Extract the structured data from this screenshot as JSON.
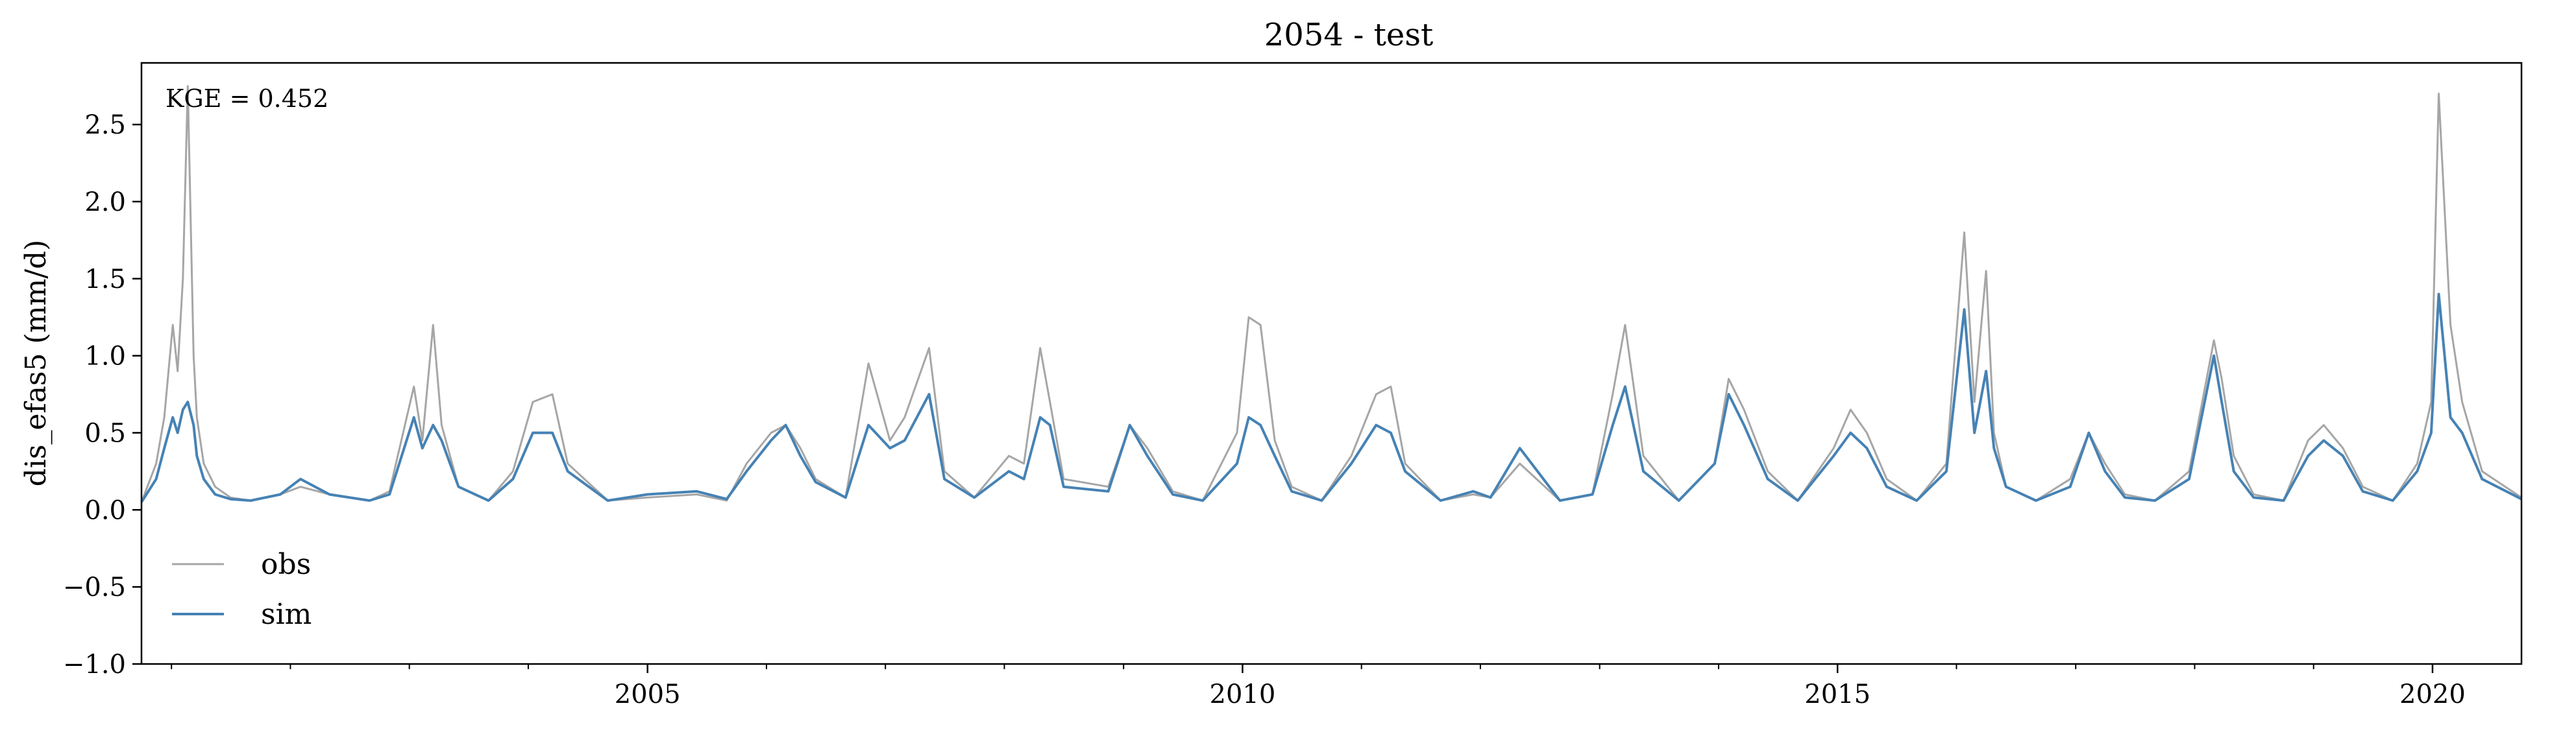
{
  "chart_data": {
    "type": "line",
    "title": "2054 - test",
    "xlabel": "",
    "ylabel": "dis_efas5 (mm/d)",
    "xlim": [
      "2000-10-01",
      "2020-09-30"
    ],
    "ylim": [
      -1.0,
      2.9
    ],
    "yticks": [
      -1.0,
      -0.5,
      0.0,
      0.5,
      1.0,
      1.5,
      2.0,
      2.5
    ],
    "ytick_labels": [
      "−1.0",
      "−0.5",
      "0.0",
      "0.5",
      "1.0",
      "1.5",
      "2.0",
      "2.5"
    ],
    "xticks": [
      "2005-01-01",
      "2010-01-01",
      "2015-01-01",
      "2020-01-01"
    ],
    "xtick_labels": [
      "2005",
      "2010",
      "2015",
      "2020"
    ],
    "grid": false,
    "legend_position": "lower-left",
    "annotation": "KGE = 0.452",
    "colors": {
      "obs": "#a6a6a6",
      "sim": "#4682b4"
    },
    "series": [
      {
        "name": "obs",
        "color": "#a6a6a6",
        "x": [
          "2000-10-01",
          "2000-11-15",
          "2000-12-10",
          "2001-01-05",
          "2001-01-20",
          "2001-02-05",
          "2001-02-20",
          "2001-03-10",
          "2001-03-20",
          "2001-04-10",
          "2001-05-15",
          "2001-07-01",
          "2001-09-01",
          "2001-12-01",
          "2002-02-01",
          "2002-05-01",
          "2002-09-01",
          "2002-11-01",
          "2003-01-15",
          "2003-02-10",
          "2003-03-15",
          "2003-04-10",
          "2003-06-01",
          "2003-09-01",
          "2003-11-15",
          "2004-01-15",
          "2004-03-15",
          "2004-05-01",
          "2004-09-01",
          "2005-01-01",
          "2005-06-01",
          "2005-09-01",
          "2005-11-01",
          "2006-01-15",
          "2006-03-01",
          "2006-04-15",
          "2006-06-01",
          "2006-09-01",
          "2006-11-10",
          "2007-01-15",
          "2007-03-01",
          "2007-05-15",
          "2007-07-01",
          "2007-10-01",
          "2008-01-15",
          "2008-03-01",
          "2008-04-20",
          "2008-05-20",
          "2008-07-01",
          "2008-11-15",
          "2009-01-20",
          "2009-03-15",
          "2009-06-01",
          "2009-09-01",
          "2009-12-15",
          "2010-01-20",
          "2010-02-25",
          "2010-04-10",
          "2010-06-01",
          "2010-09-01",
          "2010-12-01",
          "2011-02-15",
          "2011-04-01",
          "2011-05-15",
          "2011-09-01",
          "2011-12-10",
          "2012-02-01",
          "2012-05-01",
          "2012-09-01",
          "2012-12-10",
          "2013-02-10",
          "2013-03-20",
          "2013-05-15",
          "2013-09-01",
          "2013-12-20",
          "2014-02-01",
          "2014-03-20",
          "2014-06-01",
          "2014-09-01",
          "2014-12-20",
          "2015-02-10",
          "2015-04-01",
          "2015-06-01",
          "2015-09-01",
          "2015-12-01",
          "2016-01-25",
          "2016-02-25",
          "2016-04-01",
          "2016-04-25",
          "2016-06-01",
          "2016-09-01",
          "2016-12-15",
          "2017-02-10",
          "2017-04-01",
          "2017-06-01",
          "2017-09-01",
          "2017-12-15",
          "2018-03-01",
          "2018-03-25",
          "2018-05-01",
          "2018-07-01",
          "2018-10-01",
          "2018-12-15",
          "2019-02-01",
          "2019-04-01",
          "2019-06-01",
          "2019-09-01",
          "2019-11-15",
          "2019-12-28",
          "2020-01-20",
          "2020-02-25",
          "2020-04-01",
          "2020-06-01",
          "2020-09-30"
        ],
        "values": [
          0.05,
          0.3,
          0.6,
          1.2,
          0.9,
          1.5,
          2.75,
          1.0,
          0.6,
          0.3,
          0.15,
          0.08,
          0.06,
          0.1,
          0.15,
          0.1,
          0.06,
          0.12,
          0.8,
          0.45,
          1.2,
          0.55,
          0.15,
          0.06,
          0.25,
          0.7,
          0.75,
          0.3,
          0.06,
          0.08,
          0.1,
          0.06,
          0.3,
          0.5,
          0.55,
          0.4,
          0.2,
          0.08,
          0.95,
          0.45,
          0.6,
          1.05,
          0.25,
          0.08,
          0.35,
          0.3,
          1.05,
          0.7,
          0.2,
          0.15,
          0.55,
          0.4,
          0.12,
          0.06,
          0.5,
          1.25,
          1.2,
          0.45,
          0.15,
          0.06,
          0.35,
          0.75,
          0.8,
          0.3,
          0.06,
          0.1,
          0.08,
          0.3,
          0.06,
          0.1,
          0.75,
          1.2,
          0.35,
          0.06,
          0.3,
          0.85,
          0.65,
          0.25,
          0.06,
          0.4,
          0.65,
          0.5,
          0.2,
          0.06,
          0.3,
          1.8,
          0.7,
          1.55,
          0.5,
          0.15,
          0.06,
          0.2,
          0.5,
          0.3,
          0.1,
          0.06,
          0.25,
          1.1,
          0.85,
          0.35,
          0.1,
          0.06,
          0.45,
          0.55,
          0.4,
          0.15,
          0.06,
          0.3,
          0.7,
          2.7,
          1.2,
          0.7,
          0.25,
          0.08
        ]
      },
      {
        "name": "sim",
        "color": "#4682b4",
        "x": [
          "2000-10-01",
          "2000-11-15",
          "2000-12-10",
          "2001-01-05",
          "2001-01-20",
          "2001-02-05",
          "2001-02-20",
          "2001-03-10",
          "2001-03-20",
          "2001-04-10",
          "2001-05-15",
          "2001-07-01",
          "2001-09-01",
          "2001-12-01",
          "2002-02-01",
          "2002-05-01",
          "2002-09-01",
          "2002-11-01",
          "2003-01-15",
          "2003-02-10",
          "2003-03-15",
          "2003-04-10",
          "2003-06-01",
          "2003-09-01",
          "2003-11-15",
          "2004-01-15",
          "2004-03-15",
          "2004-05-01",
          "2004-09-01",
          "2005-01-01",
          "2005-06-01",
          "2005-09-01",
          "2005-11-01",
          "2006-01-15",
          "2006-03-01",
          "2006-04-15",
          "2006-06-01",
          "2006-09-01",
          "2006-11-10",
          "2007-01-15",
          "2007-03-01",
          "2007-05-15",
          "2007-07-01",
          "2007-10-01",
          "2008-01-15",
          "2008-03-01",
          "2008-04-20",
          "2008-05-20",
          "2008-07-01",
          "2008-11-15",
          "2009-01-20",
          "2009-03-15",
          "2009-06-01",
          "2009-09-01",
          "2009-12-15",
          "2010-01-20",
          "2010-02-25",
          "2010-04-10",
          "2010-06-01",
          "2010-09-01",
          "2010-12-01",
          "2011-02-15",
          "2011-04-01",
          "2011-05-15",
          "2011-09-01",
          "2011-12-10",
          "2012-02-01",
          "2012-05-01",
          "2012-09-01",
          "2012-12-10",
          "2013-02-10",
          "2013-03-20",
          "2013-05-15",
          "2013-09-01",
          "2013-12-20",
          "2014-02-01",
          "2014-03-20",
          "2014-06-01",
          "2014-09-01",
          "2014-12-20",
          "2015-02-10",
          "2015-04-01",
          "2015-06-01",
          "2015-09-01",
          "2015-12-01",
          "2016-01-25",
          "2016-02-25",
          "2016-04-01",
          "2016-04-25",
          "2016-06-01",
          "2016-09-01",
          "2016-12-15",
          "2017-02-10",
          "2017-04-01",
          "2017-06-01",
          "2017-09-01",
          "2017-12-15",
          "2018-03-01",
          "2018-03-25",
          "2018-05-01",
          "2018-07-01",
          "2018-10-01",
          "2018-12-15",
          "2019-02-01",
          "2019-04-01",
          "2019-06-01",
          "2019-09-01",
          "2019-11-15",
          "2019-12-28",
          "2020-01-20",
          "2020-02-25",
          "2020-04-01",
          "2020-06-01",
          "2020-09-30"
        ],
        "values": [
          0.05,
          0.2,
          0.4,
          0.6,
          0.5,
          0.65,
          0.7,
          0.55,
          0.35,
          0.2,
          0.1,
          0.07,
          0.06,
          0.1,
          0.2,
          0.1,
          0.06,
          0.1,
          0.6,
          0.4,
          0.55,
          0.45,
          0.15,
          0.06,
          0.2,
          0.5,
          0.5,
          0.25,
          0.06,
          0.1,
          0.12,
          0.07,
          0.25,
          0.45,
          0.55,
          0.35,
          0.18,
          0.08,
          0.55,
          0.4,
          0.45,
          0.75,
          0.2,
          0.08,
          0.25,
          0.2,
          0.6,
          0.55,
          0.15,
          0.12,
          0.55,
          0.35,
          0.1,
          0.06,
          0.3,
          0.6,
          0.55,
          0.35,
          0.12,
          0.06,
          0.3,
          0.55,
          0.5,
          0.25,
          0.06,
          0.12,
          0.08,
          0.4,
          0.06,
          0.1,
          0.55,
          0.8,
          0.25,
          0.06,
          0.3,
          0.75,
          0.55,
          0.2,
          0.06,
          0.35,
          0.5,
          0.4,
          0.15,
          0.06,
          0.25,
          1.3,
          0.5,
          0.9,
          0.4,
          0.15,
          0.06,
          0.15,
          0.5,
          0.25,
          0.08,
          0.06,
          0.2,
          1.0,
          0.7,
          0.25,
          0.08,
          0.06,
          0.35,
          0.45,
          0.35,
          0.12,
          0.06,
          0.25,
          0.5,
          1.4,
          0.6,
          0.5,
          0.2,
          0.07
        ]
      }
    ]
  }
}
